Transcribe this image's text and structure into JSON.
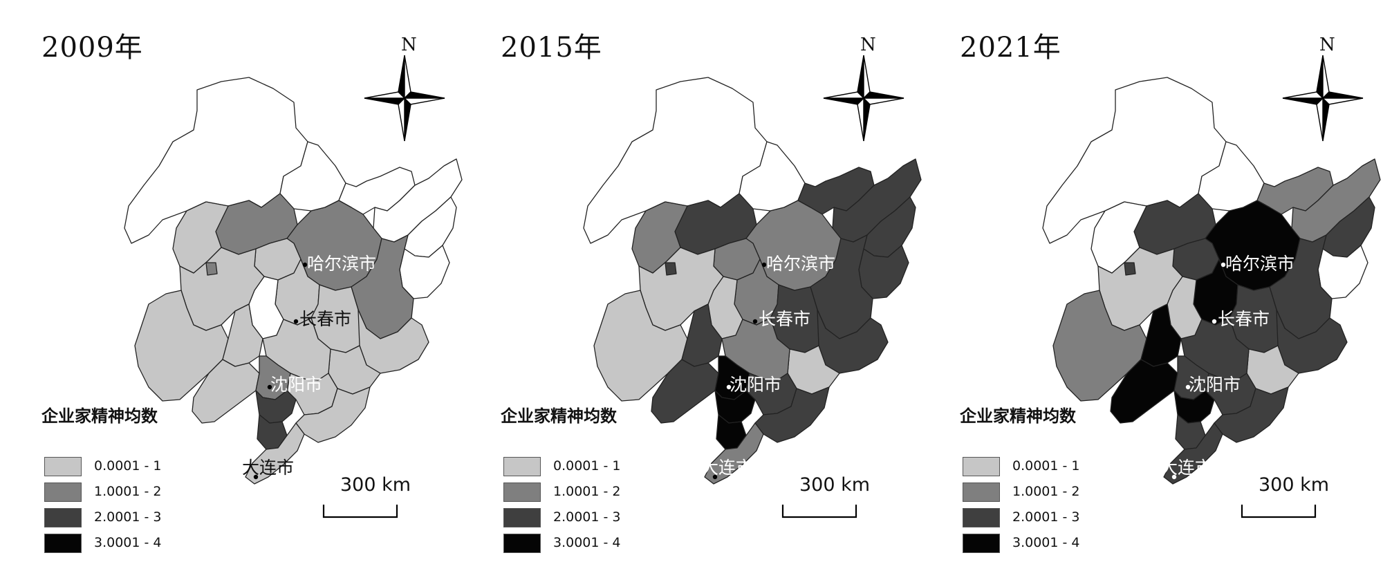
{
  "colors": {
    "class1": "#c6c6c6",
    "class2": "#7f7f7f",
    "class3": "#3f3f3f",
    "class4": "#050505",
    "none": "#ffffff",
    "border": "#222222"
  },
  "legend": {
    "title": "企业家精神均数",
    "items": [
      {
        "label": "0.0001 - 1",
        "color": "#c6c6c6"
      },
      {
        "label": "1.0001 - 2",
        "color": "#7f7f7f"
      },
      {
        "label": "2.0001 - 3",
        "color": "#3f3f3f"
      },
      {
        "label": "3.0001 - 4",
        "color": "#050505"
      }
    ]
  },
  "north_label": "N",
  "scale_label": "300 km",
  "panels": [
    {
      "year": "2009年",
      "cities": {
        "harbin": "哈尔滨市",
        "changchun": "长春市",
        "shenyang": "沈阳市",
        "dalian": "大连市"
      },
      "regions": {
        "r_heihe": 0,
        "r_yichun": 0,
        "r_hegang": 0,
        "r_jiamusi": 0,
        "r_shuangyashan": 0,
        "r_jixi": 0,
        "r_daqing_n": 2,
        "r_qiqihar": 1,
        "r_harbin": 2,
        "r_suihua_e": 1,
        "r_mudanjiang": 2,
        "r_songyuan": 1,
        "r_jilin": 1,
        "r_yanbian": 1,
        "r_baicheng": 0,
        "r_baishan": 1,
        "r_tongliao": 1,
        "r_chifeng": 1,
        "r_chaoyang": 1,
        "r_fuxin": 1,
        "r_tieling": 1,
        "r_shenyang": 2,
        "r_anshan": 3,
        "r_yingkou": 3,
        "r_benxi": 1,
        "r_dandong": 1,
        "r_dalian": 1,
        "r_small_w": 2
      }
    },
    {
      "year": "2015年",
      "cities": {
        "harbin": "哈尔滨市",
        "changchun": "长春市",
        "shenyang": "沈阳市",
        "dalian": "大连市"
      },
      "regions": {
        "r_heihe": 0,
        "r_yichun": 0,
        "r_hegang": 3,
        "r_jiamusi": 3,
        "r_shuangyashan": 3,
        "r_jixi": 3,
        "r_daqing_n": 3,
        "r_qiqihar": 2,
        "r_harbin": 2,
        "r_suihua_e": 2,
        "r_mudanjiang": 3,
        "r_songyuan": 2,
        "r_jilin": 3,
        "r_yanbian": 3,
        "r_baicheng": 1,
        "r_baishan": 1,
        "r_tongliao": 1,
        "r_chifeng": 1,
        "r_chaoyang": 3,
        "r_fuxin": 3,
        "r_tieling": 2,
        "r_shenyang": 4,
        "r_anshan": 4,
        "r_yingkou": 4,
        "r_benxi": 3,
        "r_dandong": 3,
        "r_dalian": 2,
        "r_small_w": 3
      }
    },
    {
      "year": "2021年",
      "cities": {
        "harbin": "哈尔滨市",
        "changchun": "长春市",
        "shenyang": "沈阳市",
        "dalian": "大连市"
      },
      "regions": {
        "r_heihe": 0,
        "r_yichun": 0,
        "r_hegang": 2,
        "r_jiamusi": 2,
        "r_shuangyashan": 3,
        "r_jixi": 0,
        "r_daqing_n": 3,
        "r_qiqihar": 0,
        "r_harbin": 4,
        "r_suihua_e": 3,
        "r_mudanjiang": 3,
        "r_songyuan": 4,
        "r_jilin": 3,
        "r_yanbian": 3,
        "r_baicheng": 1,
        "r_baishan": 1,
        "r_tongliao": 1,
        "r_chifeng": 2,
        "r_chaoyang": 4,
        "r_fuxin": 4,
        "r_tieling": 3,
        "r_shenyang": 3,
        "r_anshan": 4,
        "r_yingkou": 3,
        "r_benxi": 3,
        "r_dandong": 3,
        "r_dalian": 3,
        "r_small_w": 3
      }
    }
  ]
}
